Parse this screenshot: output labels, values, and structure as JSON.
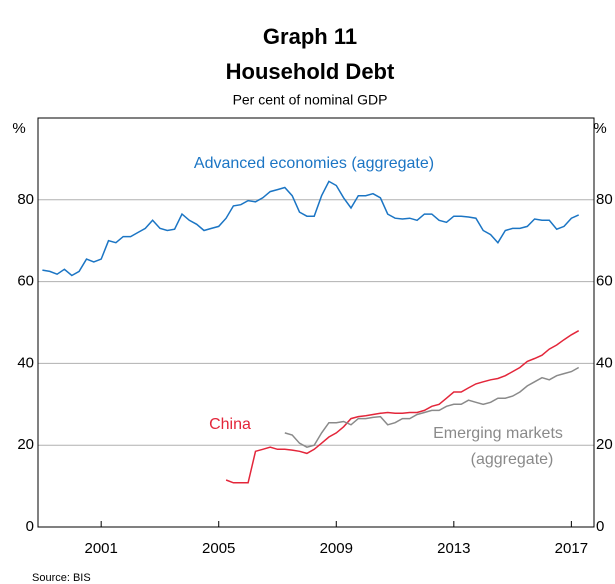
{
  "chart_data": {
    "type": "line",
    "title": "Graph 11",
    "subtitle": "Household Debt",
    "note": "Per cent of nominal GDP",
    "y_unit": "%",
    "source": "Source: BIS",
    "ylim": [
      0,
      100
    ],
    "yticks": [
      0,
      20,
      40,
      60,
      80
    ],
    "grid": true,
    "xlim": [
      1999.35,
      2018.27
    ],
    "xticks": [
      {
        "value": 2001.5,
        "label": "2001"
      },
      {
        "value": 2005.5,
        "label": "2005"
      },
      {
        "value": 2009.5,
        "label": "2009"
      },
      {
        "value": 2013.5,
        "label": "2013"
      },
      {
        "value": 2017.5,
        "label": "2017"
      }
    ],
    "series": [
      {
        "name": "Advanced economies (aggregate)",
        "color": "#1b75c4",
        "x": [
          1999.5,
          1999.75,
          2000,
          2000.25,
          2000.5,
          2000.75,
          2001,
          2001.25,
          2001.5,
          2001.75,
          2002,
          2002.25,
          2002.5,
          2002.75,
          2003,
          2003.25,
          2003.5,
          2003.75,
          2004,
          2004.25,
          2004.5,
          2004.75,
          2005,
          2005.25,
          2005.5,
          2005.75,
          2006,
          2006.25,
          2006.5,
          2006.75,
          2007,
          2007.25,
          2007.5,
          2007.75,
          2008,
          2008.25,
          2008.5,
          2008.75,
          2009,
          2009.25,
          2009.5,
          2009.75,
          2010,
          2010.25,
          2010.5,
          2010.75,
          2011,
          2011.25,
          2011.5,
          2011.75,
          2012,
          2012.25,
          2012.5,
          2012.75,
          2013,
          2013.25,
          2013.5,
          2013.75,
          2014,
          2014.25,
          2014.5,
          2014.75,
          2015,
          2015.25,
          2015.5,
          2015.75,
          2016,
          2016.25,
          2016.5,
          2016.75,
          2017,
          2017.25,
          2017.5,
          2017.75
        ],
        "values": [
          62.8,
          62.5,
          61.8,
          63.0,
          61.5,
          62.5,
          65.5,
          64.8,
          65.5,
          70,
          69.5,
          71,
          71,
          72,
          73,
          75,
          73,
          72.5,
          72.8,
          76.5,
          75,
          74,
          72.5,
          73,
          73.5,
          75.5,
          78.5,
          78.8,
          79.8,
          79.5,
          80.5,
          82,
          82.5,
          83,
          81,
          77,
          76,
          76,
          81,
          84.5,
          83.5,
          80.5,
          78,
          81,
          81,
          81.5,
          80.5,
          76.5,
          75.5,
          75.3,
          75.5,
          75,
          76.5,
          76.5,
          75,
          74.5,
          76,
          76,
          75.8,
          75.5,
          72.5,
          71.5,
          69.5,
          72.5,
          73,
          73,
          73.5,
          75.3,
          75,
          75,
          72.8,
          73.5,
          75.5,
          76.3
        ]
      },
      {
        "name": "China",
        "color": "#e3263a",
        "x": [
          2005.75,
          2006,
          2006.25,
          2006.5,
          2006.75,
          2007,
          2007.25,
          2007.5,
          2007.75,
          2008,
          2008.25,
          2008.5,
          2008.75,
          2009,
          2009.25,
          2009.5,
          2009.75,
          2010,
          2010.25,
          2010.5,
          2010.75,
          2011,
          2011.25,
          2011.5,
          2011.75,
          2012,
          2012.25,
          2012.5,
          2012.75,
          2013,
          2013.25,
          2013.5,
          2013.75,
          2014,
          2014.25,
          2014.5,
          2014.75,
          2015,
          2015.25,
          2015.5,
          2015.75,
          2016,
          2016.25,
          2016.5,
          2016.75,
          2017,
          2017.25,
          2017.5,
          2017.75
        ],
        "values": [
          11.5,
          10.8,
          10.8,
          10.8,
          18.5,
          19,
          19.5,
          19,
          19,
          18.8,
          18.5,
          18,
          19,
          20.5,
          22,
          23,
          24.5,
          26.5,
          27,
          27.2,
          27.5,
          27.8,
          28,
          27.8,
          27.8,
          28,
          28,
          28.5,
          29.5,
          30,
          31.5,
          33,
          33,
          34,
          35,
          35.5,
          36,
          36.3,
          37,
          38,
          39,
          40.5,
          41.2,
          42,
          43.5,
          44.5,
          45.8,
          47,
          48
        ]
      },
      {
        "name": [
          "Emerging markets",
          "(aggregate)"
        ],
        "color": "#8a8a8a",
        "x": [
          2007.75,
          2008,
          2008.25,
          2008.5,
          2008.75,
          2009,
          2009.25,
          2009.5,
          2009.75,
          2010,
          2010.25,
          2010.5,
          2010.75,
          2011,
          2011.25,
          2011.5,
          2011.75,
          2012,
          2012.25,
          2012.5,
          2012.75,
          2013,
          2013.25,
          2013.5,
          2013.75,
          2014,
          2014.25,
          2014.5,
          2014.75,
          2015,
          2015.25,
          2015.5,
          2015.75,
          2016,
          2016.25,
          2016.5,
          2016.75,
          2017,
          2017.25,
          2017.5,
          2017.75
        ],
        "values": [
          23,
          22.5,
          20.5,
          19.5,
          20,
          23,
          25.5,
          25.5,
          25.8,
          25,
          26.5,
          26.5,
          26.8,
          27,
          25,
          25.5,
          26.5,
          26.5,
          27.5,
          28,
          28.5,
          28.5,
          29.5,
          30,
          30,
          31,
          30.5,
          30,
          30.5,
          31.5,
          31.5,
          32,
          33,
          34.5,
          35.5,
          36.5,
          36,
          37,
          37.5,
          38,
          39
        ]
      }
    ]
  }
}
